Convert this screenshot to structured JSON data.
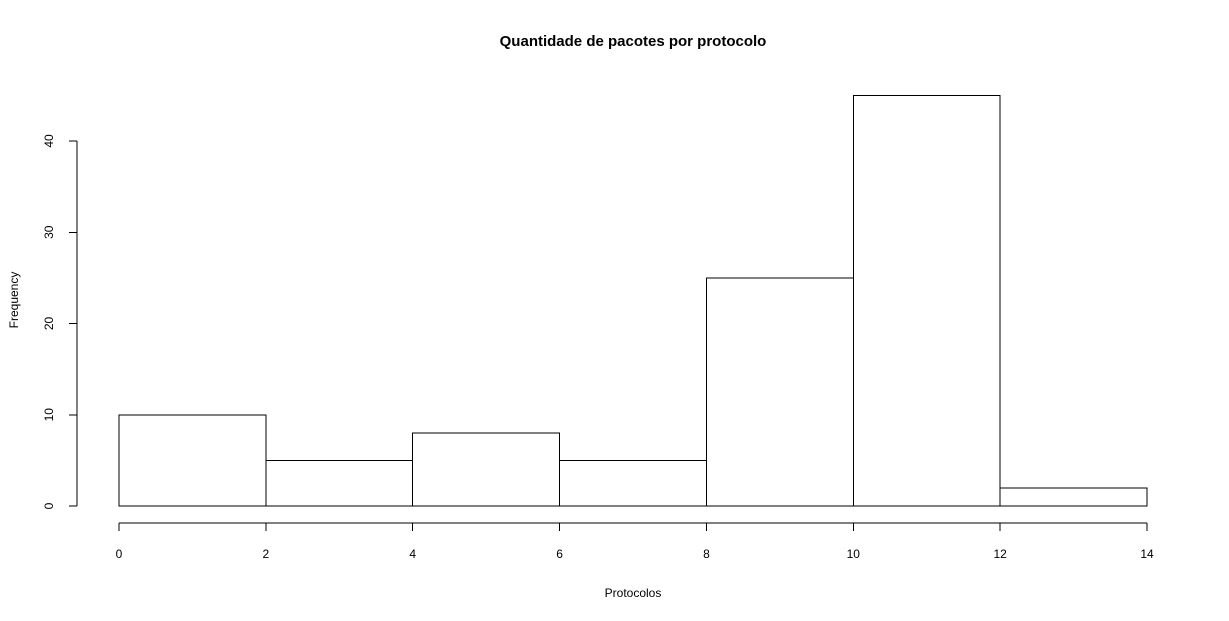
{
  "chart_data": {
    "type": "bar",
    "title": "Quantidade de pacotes por protocolo",
    "xlabel": "Protocolos",
    "ylabel": "Frequency",
    "bins": [
      {
        "start": 0,
        "end": 2,
        "value": 10
      },
      {
        "start": 2,
        "end": 4,
        "value": 5
      },
      {
        "start": 4,
        "end": 6,
        "value": 8
      },
      {
        "start": 6,
        "end": 8,
        "value": 5
      },
      {
        "start": 8,
        "end": 10,
        "value": 25
      },
      {
        "start": 10,
        "end": 12,
        "value": 45
      },
      {
        "start": 12,
        "end": 14,
        "value": 2
      }
    ],
    "xlim": [
      0,
      14
    ],
    "ylim": [
      0,
      45
    ],
    "x_ticks": [
      0,
      2,
      4,
      6,
      8,
      10,
      12,
      14
    ],
    "y_ticks": [
      0,
      10,
      20,
      30,
      40
    ],
    "grid": false,
    "bar_fill": "#ffffff",
    "bar_stroke": "#000000"
  }
}
